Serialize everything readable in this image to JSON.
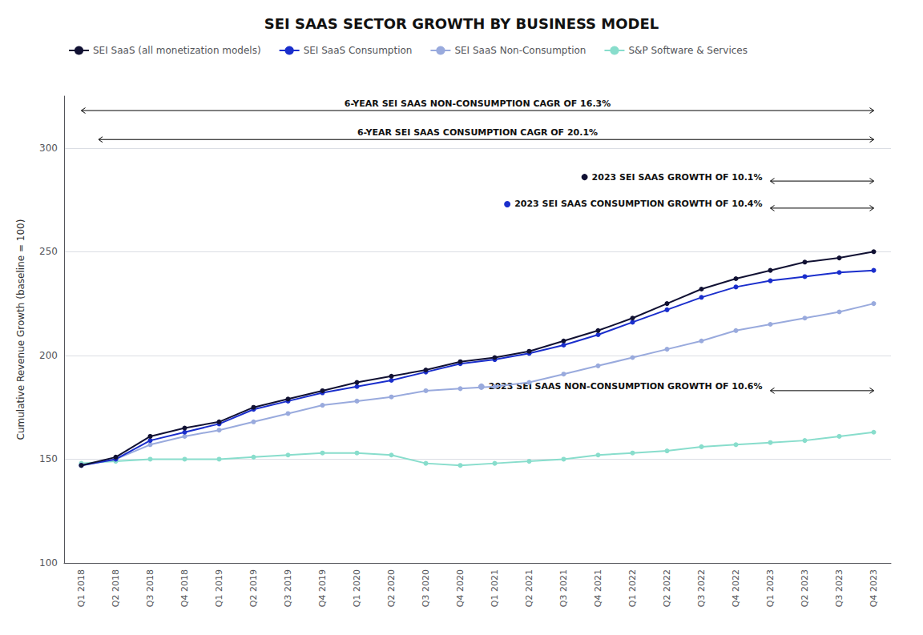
{
  "chart_data": {
    "type": "line",
    "title": "SEI SAAS SECTOR GROWTH BY BUSINESS MODEL",
    "ylabel": "Cumulative Revenue Growth (baseline = 100)",
    "categories": [
      "Q1 2018",
      "Q2 2018",
      "Q3 2018",
      "Q4 2018",
      "Q1 2019",
      "Q2 2019",
      "Q3 2019",
      "Q4 2019",
      "Q1 2020",
      "Q2 2020",
      "Q3 2020",
      "Q4 2020",
      "Q1 2021",
      "Q2 2021",
      "Q3 2021",
      "Q4 2021",
      "Q1 2022",
      "Q2 2022",
      "Q3 2022",
      "Q4 2022",
      "Q1 2023",
      "Q2 2023",
      "Q3 2023",
      "Q4 2023"
    ],
    "series": [
      {
        "name": "SEI SaaS (all monetization models)",
        "color": "#111133",
        "values": [
          147,
          151,
          161,
          165,
          168,
          175,
          179,
          183,
          187,
          190,
          193,
          197,
          199,
          202,
          207,
          212,
          218,
          225,
          232,
          237,
          241,
          245,
          247,
          250
        ]
      },
      {
        "name": "SEI SaaS Consumption",
        "color": "#1a2ecc",
        "values": [
          147,
          150,
          159,
          163,
          167,
          174,
          178,
          182,
          185,
          188,
          192,
          196,
          198,
          201,
          205,
          210,
          216,
          222,
          228,
          233,
          236,
          238,
          240,
          241
        ]
      },
      {
        "name": "SEI SaaS Non-Consumption",
        "color": "#99aadd",
        "values": [
          147,
          150,
          157,
          161,
          164,
          168,
          172,
          176,
          178,
          180,
          183,
          184,
          185,
          187,
          191,
          195,
          199,
          203,
          207,
          212,
          215,
          218,
          221,
          225
        ]
      },
      {
        "name": "S&P Software & Services",
        "color": "#88ddcc",
        "values": [
          148,
          149,
          150,
          150,
          150,
          151,
          152,
          153,
          153,
          152,
          148,
          147,
          148,
          149,
          150,
          152,
          153,
          154,
          156,
          157,
          158,
          159,
          161,
          163
        ]
      }
    ],
    "ylim": [
      100,
      325
    ],
    "yticks": [
      100,
      150,
      200,
      250,
      300
    ],
    "grid": true,
    "legend": "upper left",
    "marker": "circle",
    "annotations": [
      "6-YEAR SEI SAAS NON-CONSUMPTION CAGR OF 16.3%",
      "6-YEAR SEI SAAS CONSUMPTION CAGR OF 20.1%",
      "2023 SEI SAAS GROWTH OF 10.1%",
      "2023 SEI SAAS CONSUMPTION GROWTH OF 10.4%",
      "2023 SEI SAAS NON-CONSUMPTION GROWTH OF 10.6%"
    ]
  }
}
